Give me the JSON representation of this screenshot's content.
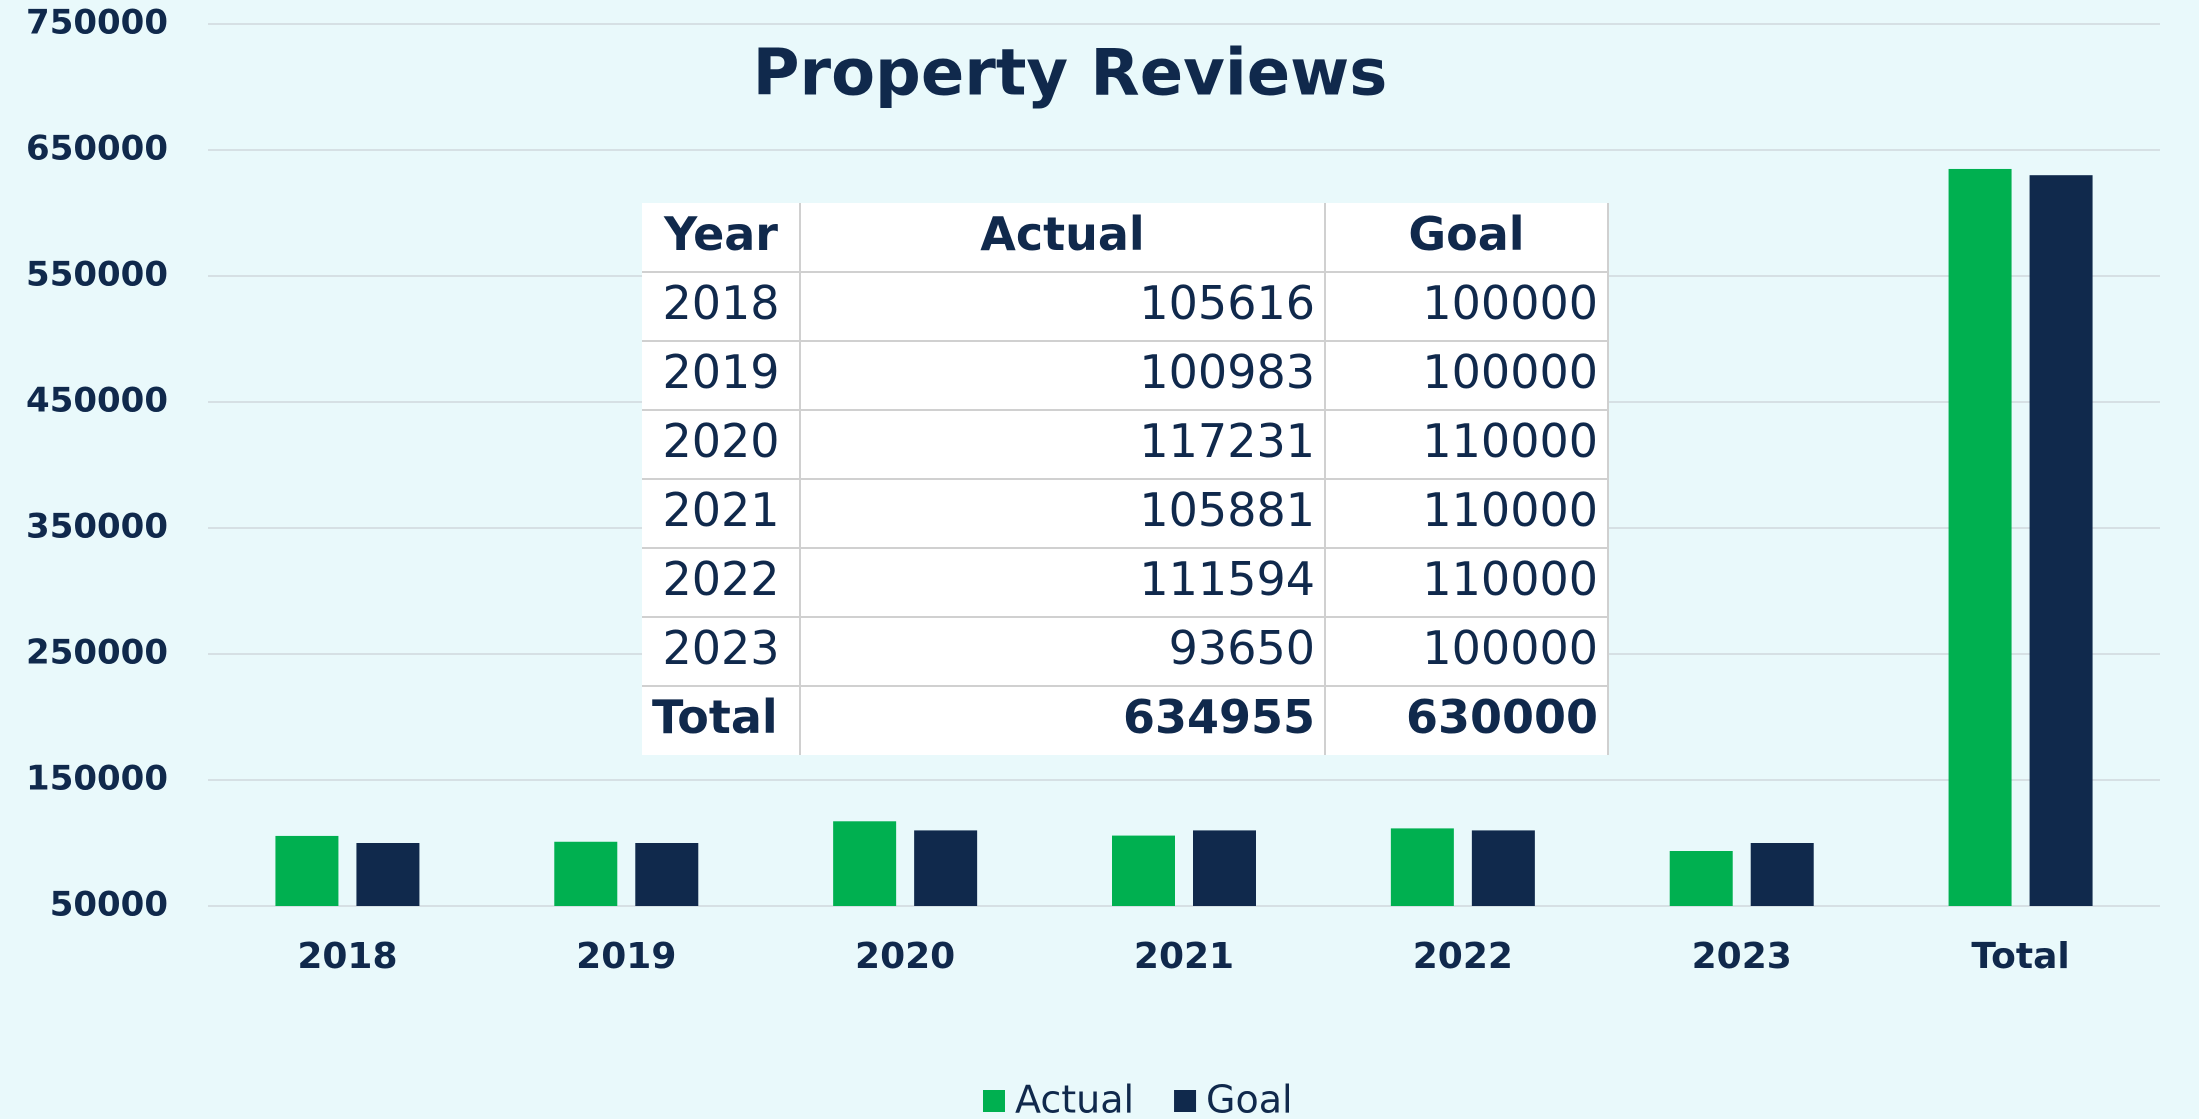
{
  "chart_data": {
    "type": "bar",
    "title": "Property Reviews",
    "categories": [
      "2018",
      "2019",
      "2020",
      "2021",
      "2022",
      "2023",
      "Total"
    ],
    "series": [
      {
        "name": "Actual",
        "color": "#00b050",
        "values": [
          105616,
          100983,
          117231,
          105881,
          111594,
          93650,
          634955
        ]
      },
      {
        "name": "Goal",
        "color": "#10294c",
        "values": [
          100000,
          100000,
          110000,
          110000,
          110000,
          100000,
          630000
        ]
      }
    ],
    "ylim": [
      50000,
      750000
    ],
    "yticks": [
      50000,
      150000,
      250000,
      350000,
      450000,
      550000,
      650000,
      750000
    ],
    "grid": true,
    "legend": "bottom"
  },
  "table": {
    "header": "Year"
  }
}
